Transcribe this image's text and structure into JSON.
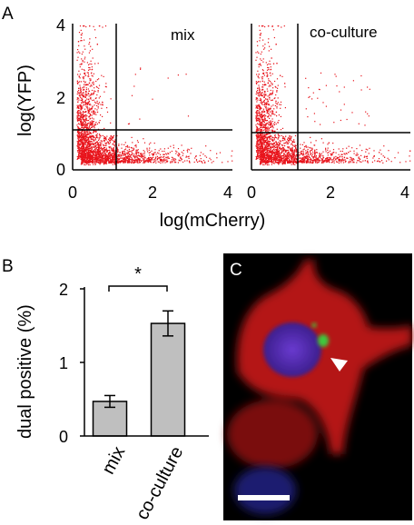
{
  "figure": {
    "panel_a_letter": "A",
    "panel_b_letter": "B",
    "panel_c_letter": "C"
  },
  "chart_data": [
    {
      "type": "scatter",
      "title": "mix",
      "xlabel": "log(mCherry)",
      "ylabel": "log(YFP)",
      "xlim": [
        0,
        4
      ],
      "ylim": [
        0,
        4
      ],
      "xticks": [
        "0",
        "2",
        "4"
      ],
      "yticks": [
        "0",
        "2",
        "4"
      ],
      "gates": {
        "x": 1.1,
        "y": 1.1
      },
      "point_color": "#e8141c",
      "approx_dual_positive_fraction": 0.005
    },
    {
      "type": "scatter",
      "title": "co-culture",
      "xlabel": "log(mCherry)",
      "ylabel": "log(YFP)",
      "xlim": [
        0,
        4
      ],
      "ylim": [
        0,
        4
      ],
      "xticks": [
        "0",
        "2",
        "4"
      ],
      "yticks": [
        "0",
        "2",
        "4"
      ],
      "gates": {
        "x": 1.1,
        "y": 1.1
      },
      "point_color": "#e8141c",
      "approx_dual_positive_fraction": 0.015
    },
    {
      "type": "bar",
      "categories": [
        "mix",
        "co-culture"
      ],
      "values": [
        0.47,
        1.53
      ],
      "errors": [
        0.08,
        0.17
      ],
      "ylabel": "dual positive (%)",
      "ylim": [
        0,
        2
      ],
      "yticks": [
        "0",
        "1",
        "2"
      ],
      "bar_color": "#bfbfbf",
      "significance": "*"
    }
  ],
  "micrograph": {
    "colors": {
      "background": "#000000",
      "cell": "#c81414",
      "nucleus": "#4a2aa8",
      "puncta": "#3cc83c",
      "scale_bar": "#ffffff"
    },
    "icons": [
      "arrowhead-icon",
      "scale-bar"
    ]
  }
}
